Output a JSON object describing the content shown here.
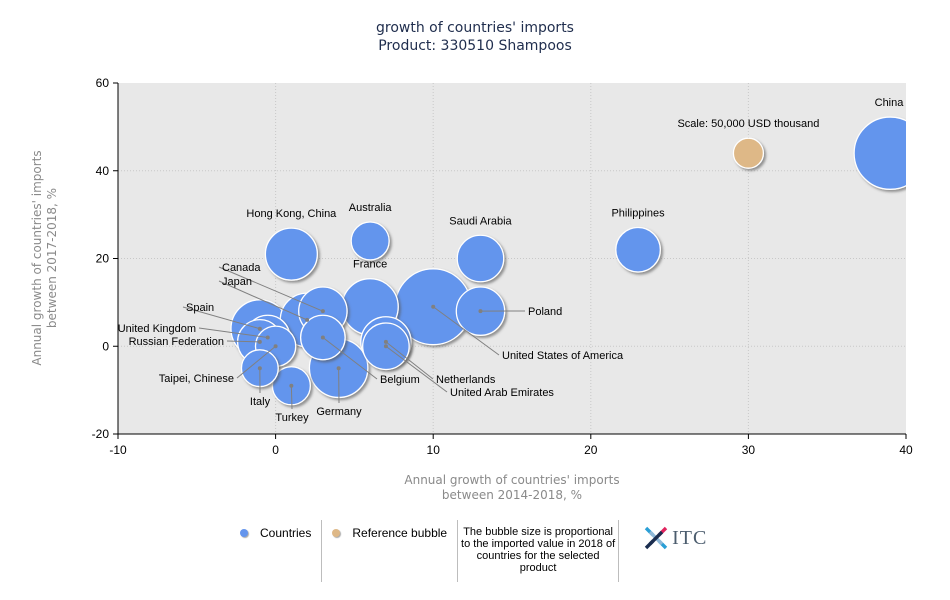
{
  "chart_data": {
    "type": "bubble",
    "title": "growth of countries' imports",
    "subtitle": "Product: 330510 Shampoos",
    "xlabel": [
      "Annual growth of countries' imports",
      "between 2014-2018, %"
    ],
    "ylabel": [
      "Annual growth of countries' imports",
      "between 2017-2018, %"
    ],
    "xlim": [
      -10,
      40
    ],
    "ylim": [
      -20,
      60
    ],
    "xticks": [
      -10,
      0,
      10,
      20,
      30,
      40
    ],
    "yticks": [
      -20,
      0,
      20,
      40,
      60
    ],
    "grid": true,
    "colors": {
      "countries": "#6495ED",
      "reference": "#DEB887",
      "plot_bg": "#E8E8E8"
    },
    "size_unit": "relative imported value in 2018 (reference bubble = 50,000 USD thousand)",
    "points": [
      {
        "name": "China",
        "x": 39,
        "y": 44,
        "size": 5.8,
        "label_pos": "top"
      },
      {
        "name": "Philippines",
        "x": 23,
        "y": 22,
        "size": 2.2,
        "label_pos": "top"
      },
      {
        "name": "Saudi Arabia",
        "x": 13,
        "y": 20,
        "size": 2.4,
        "label_pos": "top"
      },
      {
        "name": "Australia",
        "x": 6,
        "y": 24,
        "size": 1.6,
        "label_pos": "top"
      },
      {
        "name": "Hong Kong, China",
        "x": 1,
        "y": 21,
        "size": 3.0,
        "label_pos": "top"
      },
      {
        "name": "France",
        "x": 6,
        "y": 9,
        "size": 3.5,
        "label_pos": "top"
      },
      {
        "name": "United States of America",
        "x": 10,
        "y": 9,
        "size": 6.4,
        "label_pos": "leader"
      },
      {
        "name": "Poland",
        "x": 13,
        "y": 8,
        "size": 2.6,
        "label_pos": "leader"
      },
      {
        "name": "Canada",
        "x": 3,
        "y": 8,
        "size": 2.6,
        "label_pos": "leader"
      },
      {
        "name": "Japan",
        "x": 2,
        "y": 6,
        "size": 3.2,
        "label_pos": "leader"
      },
      {
        "name": "Spain",
        "x": -1,
        "y": 4,
        "size": 3.7,
        "label_pos": "leader"
      },
      {
        "name": "United Kingdom",
        "x": -0.5,
        "y": 2,
        "size": 2.2,
        "label_pos": "leader"
      },
      {
        "name": "Russian Federation",
        "x": -1,
        "y": 1,
        "size": 2.2,
        "label_pos": "leader"
      },
      {
        "name": "Taipei, Chinese",
        "x": 0,
        "y": 0,
        "size": 1.8,
        "label_pos": "leader"
      },
      {
        "name": "Belgium",
        "x": 3,
        "y": 2,
        "size": 2.2,
        "label_pos": "leader"
      },
      {
        "name": "Netherlands",
        "x": 7,
        "y": 1,
        "size": 2.8,
        "label_pos": "leader"
      },
      {
        "name": "United Arab Emirates",
        "x": 7,
        "y": 0,
        "size": 2.4,
        "label_pos": "leader"
      },
      {
        "name": "Germany",
        "x": 4,
        "y": -5,
        "size": 3.8,
        "label_pos": "leader"
      },
      {
        "name": "Italy",
        "x": -1,
        "y": -5,
        "size": 1.5,
        "label_pos": "leader"
      },
      {
        "name": "Turkey",
        "x": 1,
        "y": -9,
        "size": 1.6,
        "label_pos": "leader"
      }
    ],
    "reference_bubble": {
      "label": "Scale: 50,000 USD thousand",
      "x": 30,
      "y": 44,
      "size": 1.0
    }
  },
  "legend": {
    "countries": "Countries",
    "reference": "Reference bubble",
    "note": "The bubble size is proportional to the imported value in 2018 of countries for the selected product",
    "logo": "ITC"
  }
}
